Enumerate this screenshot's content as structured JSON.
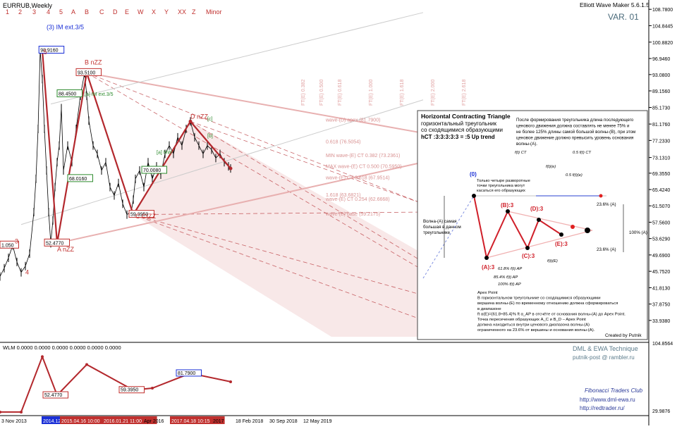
{
  "app": {
    "symbol_title": "EURRUB,Weekly",
    "version_label": "Elliott Wave Maker 5.6.1.5",
    "variant_label": "VAR. 01",
    "top_time_labels": [
      "1",
      "2",
      "3",
      "4",
      "5",
      "A",
      "B",
      "C",
      "D",
      "E",
      "W",
      "X",
      "Y",
      "XX",
      "Z",
      "Minor"
    ]
  },
  "chart_data": [
    {
      "type": "line",
      "title": "EURRUB,Weekly",
      "ylim": [
        29.0,
        110.0
      ],
      "y_ticks": [
        "108.7800",
        "104.8445",
        "100.8820",
        "96.9460",
        "93.0800",
        "89.1560",
        "85.1730",
        "81.1760",
        "77.2330",
        "73.1310",
        "69.3550",
        "65.4240",
        "61.5070",
        "57.5600",
        "53.6290",
        "49.6900",
        "45.7520",
        "41.8130",
        "37.8750",
        "33.9380"
      ],
      "x_tick_labels": [
        "3 Nov 2013",
        "2014.12.",
        "2015.04.16 10:00",
        "2016.01.21 11:00",
        "Apr 2016",
        "2017.04.18 10:15",
        "2017",
        "18 Feb 2018",
        "30 Sep 2018",
        "12 May 2019"
      ],
      "price_labels": [
        "98.9160",
        "93.5100",
        "88.4500",
        "68.0160",
        "52.4770",
        "59.3950",
        "70.0080",
        "1.050"
      ],
      "wave_labels": [
        {
          "text": "(3) IM ext.3/5",
          "x": 0.11,
          "y": 104.0
        },
        {
          "text": "B nZZ",
          "x": 0.2,
          "y": 95.5
        },
        {
          "text": "A nZZ",
          "x": 0.135,
          "y": 50.5
        },
        {
          "text": "C CIZZ",
          "x": 0.32,
          "y": 58.5
        },
        {
          "text": "D nZZ",
          "x": 0.45,
          "y": 82.5
        },
        {
          "text": "3",
          "x": 0.035,
          "y": 52.5
        },
        {
          "text": "4",
          "x": 0.06,
          "y": 45.0
        },
        {
          "text": "5",
          "x": 0.103,
          "y": 98.0
        }
      ],
      "annotations": [
        "[a] IM ext.3/5",
        "[a] MW",
        "[c]",
        "[b]",
        "MIN wave-(E) CT 0.382 (73.2361)",
        "MAX wave-(E) CT 0.500 (70.5950)",
        "wave-(E) CT 0.618 (67.9514)",
        "wave-(D) apex (81.7900)",
        "0.618 (76.5054)",
        "1.618 (63.6821)",
        "wave-(E) CT 0.254 (62.6668)",
        "wave-(E) base (59.2175)",
        "FT(E) 0.382",
        "FT(E) 0.500",
        "FT(E) 0.618",
        "FT(E) 1.000",
        "FT(E) 1.618",
        "FT(E) 2.000",
        "FT(E) 2.618"
      ],
      "series": [
        {
          "name": "",
          "x": [
            0.0,
            0.01,
            0.02,
            0.03,
            0.04,
            0.05,
            0.06,
            0.07,
            0.08,
            0.085,
            0.09,
            0.095,
            0.1,
            0.105,
            0.11,
            0.115,
            0.12,
            0.125,
            0.13,
            0.135,
            0.14,
            0.145,
            0.15,
            0.16,
            0.17,
            0.18,
            0.19,
            0.2,
            0.205,
            0.21,
            0.22,
            0.23,
            0.24,
            0.25,
            0.26,
            0.27,
            0.28,
            0.29,
            0.3,
            0.31,
            0.315,
            0.32,
            0.33,
            0.34,
            0.35,
            0.36,
            0.37,
            0.38,
            0.39,
            0.4,
            0.41,
            0.42,
            0.43,
            0.44,
            0.45,
            0.46,
            0.47,
            0.48,
            0.49,
            0.5,
            0.51,
            0.52,
            0.53,
            0.54,
            0.545
          ],
          "values": [
            44.5,
            46.5,
            49.0,
            52.0,
            48.0,
            45.5,
            47.0,
            50.0,
            60.0,
            68.0,
            80.0,
            98.9,
            92.0,
            80.0,
            70.0,
            60.0,
            52.5,
            58.0,
            66.0,
            72.0,
            76.0,
            85.0,
            70.0,
            76.0,
            72.0,
            80.0,
            88.0,
            93.5,
            88.0,
            82.0,
            76.0,
            74.0,
            70.0,
            72.0,
            66.0,
            64.0,
            67.0,
            62.0,
            59.4,
            60.0,
            63.0,
            68.0,
            70.0,
            66.0,
            72.0,
            68.0,
            71.0,
            69.0,
            74.0,
            76.0,
            74.0,
            78.0,
            76.0,
            80.0,
            81.8,
            78.0,
            76.0,
            74.0,
            76.0,
            75.0,
            73.0,
            74.0,
            72.0,
            71.0,
            70.5
          ]
        }
      ],
      "wave_path": {
        "x": [
          0.1,
          0.135,
          0.205,
          0.315,
          0.45,
          0.545
        ],
        "values": [
          98.9,
          52.5,
          93.5,
          59.4,
          81.8,
          70.5
        ]
      },
      "grid": false
    },
    {
      "type": "line",
      "title": "WLM 0.0000 0.0000 0.0000 0.0000 0.0000 0.0000",
      "ylim": [
        29.0,
        110.0
      ],
      "y_ticks": [
        "104.8564",
        "29.9876"
      ],
      "price_labels": [
        "52.4770",
        "59.3950",
        "81.7900"
      ],
      "series": [
        {
          "name": "",
          "x": [
            0.0,
            0.05,
            0.1,
            0.135,
            0.205,
            0.315,
            0.36,
            0.45,
            0.545
          ],
          "values": [
            30.0,
            30.0,
            104.0,
            52.5,
            93.5,
            59.4,
            62.0,
            81.8,
            70.5
          ]
        }
      ]
    }
  ],
  "info_panel": {
    "title": "Horizontal Contracting Triangle",
    "subtitle_lines": [
      "горизонтальный треугольник",
      "со сходящимися образующими"
    ],
    "hct_line": "hCT :3:3:3:3:3 = :5 Up trend",
    "note_right": [
      "После формирования треугольника длина последующего",
      "ценового движения должна составлять не менее 75% и",
      "не более 125% длины самой большой волны-(B), при этом",
      "ценовое движение должно превысить уровень основания",
      "волны-(A)."
    ],
    "note_reversal": [
      "Только четыре разворотные",
      "точки треугольника могут",
      "касаться его образующих"
    ],
    "note_wave_a": [
      "Волна-(A) самая",
      "большая в данном",
      "треугольнике"
    ],
    "wave_labels": [
      "(0)",
      "(A):3",
      "(B):3",
      "(C):3",
      "(D):3",
      "(E):3"
    ],
    "fib_labels": [
      "f(t) CT",
      "0.5 f(t) CT",
      "f(t)(e)",
      "0.5 f(t)(e)",
      "61.8% f(t) AP",
      "85.4% f(t) AP",
      "100% f(t) AP",
      "f(t)(E)"
    ],
    "percent_labels": [
      "23.6% (A)",
      "23.6% (A)",
      "100% (A)"
    ],
    "apex_note": [
      "Apex Point",
      "В горизонтальном треугольнике со сходящимися образующими",
      "вершина волны-(E) по временному отношению должна сформироваться",
      "в диапазоне",
      "ft α(E)={61.8÷85.4}% ft α_AP в отсчёте от основания волны-(A) до Apex Point.",
      "Точка пересечения образующих A_C и B_D – Apex Point",
      "должна находиться внутри ценового диапазона волны-(A)",
      "ограниченного на 23.6% от вершины и основания волны-(A)."
    ],
    "credit": "Created by Putnik"
  },
  "footer": {
    "brand_lines": [
      "DML & EWA Technique",
      "putnik-post @ rambler.ru"
    ],
    "club_lines": [
      "Fibonacci   Traders   Club",
      "http://www.dml-ewa.ru",
      "http://redtrader.ru/"
    ]
  },
  "colors": {
    "wave": "#b3282d",
    "wave_light": "#e8b0b0",
    "label_blue": "#1a2fd6",
    "label_red": "#c0302e",
    "label_green": "#2e8b2e",
    "candle": "#000000",
    "fill_zone": "#f3d9d9"
  }
}
